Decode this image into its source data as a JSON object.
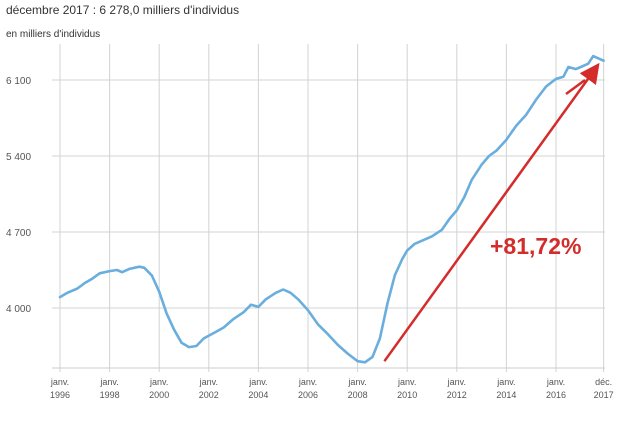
{
  "header": {
    "title": "décembre 2017 : 6 278,0 milliers d'individus",
    "unit": "en milliers d'individus"
  },
  "annotation": {
    "text": "+81,72%",
    "color": "#d42b2b"
  },
  "colors": {
    "line": "#6aaede",
    "grid": "#d3d3d3",
    "arrow": "#d42b2b"
  },
  "chart_data": {
    "type": "line",
    "title": "décembre 2017 : 6 278,0 milliers d'individus",
    "ylabel": "en milliers d'individus",
    "ylim": [
      3400,
      6450
    ],
    "xlim": [
      1996,
      2018
    ],
    "y_ticks": [
      {
        "value": 4000,
        "label": "4 000"
      },
      {
        "value": 4700,
        "label": "4 700"
      },
      {
        "value": 5400,
        "label": "5 400"
      },
      {
        "value": 6100,
        "label": "6 100"
      }
    ],
    "x_ticks": [
      {
        "value": 1996,
        "line1": "janv.",
        "line2": "1996"
      },
      {
        "value": 1998,
        "line1": "janv.",
        "line2": "1998"
      },
      {
        "value": 2000,
        "line1": "janv.",
        "line2": "2000"
      },
      {
        "value": 2002,
        "line1": "janv.",
        "line2": "2002"
      },
      {
        "value": 2004,
        "line1": "janv.",
        "line2": "2004"
      },
      {
        "value": 2006,
        "line1": "janv.",
        "line2": "2006"
      },
      {
        "value": 2008,
        "line1": "janv.",
        "line2": "2008"
      },
      {
        "value": 2010,
        "line1": "janv.",
        "line2": "2010"
      },
      {
        "value": 2012,
        "line1": "janv.",
        "line2": "2012"
      },
      {
        "value": 2014,
        "line1": "janv.",
        "line2": "2014"
      },
      {
        "value": 2016,
        "line1": "janv.",
        "line2": "2016"
      },
      {
        "value": 2017.92,
        "line1": "déc.",
        "line2": "2017"
      }
    ],
    "grid": true,
    "series": [
      {
        "values": [
          [
            1996.0,
            4100
          ],
          [
            1996.3,
            4140
          ],
          [
            1996.7,
            4180
          ],
          [
            1997.0,
            4230
          ],
          [
            1997.3,
            4270
          ],
          [
            1997.6,
            4320
          ],
          [
            1998.0,
            4340
          ],
          [
            1998.3,
            4350
          ],
          [
            1998.5,
            4330
          ],
          [
            1998.8,
            4360
          ],
          [
            1999.2,
            4380
          ],
          [
            1999.4,
            4370
          ],
          [
            1999.7,
            4300
          ],
          [
            2000.0,
            4150
          ],
          [
            2000.3,
            3950
          ],
          [
            2000.6,
            3800
          ],
          [
            2000.9,
            3680
          ],
          [
            2001.2,
            3640
          ],
          [
            2001.5,
            3650
          ],
          [
            2001.8,
            3720
          ],
          [
            2002.2,
            3770
          ],
          [
            2002.6,
            3820
          ],
          [
            2003.0,
            3900
          ],
          [
            2003.4,
            3960
          ],
          [
            2003.7,
            4030
          ],
          [
            2004.0,
            4010
          ],
          [
            2004.3,
            4080
          ],
          [
            2004.7,
            4140
          ],
          [
            2005.0,
            4170
          ],
          [
            2005.3,
            4140
          ],
          [
            2005.6,
            4080
          ],
          [
            2006.0,
            3980
          ],
          [
            2006.4,
            3850
          ],
          [
            2006.8,
            3760
          ],
          [
            2007.2,
            3660
          ],
          [
            2007.6,
            3580
          ],
          [
            2008.0,
            3510
          ],
          [
            2008.3,
            3500
          ],
          [
            2008.6,
            3550
          ],
          [
            2008.9,
            3720
          ],
          [
            2009.2,
            4040
          ],
          [
            2009.5,
            4300
          ],
          [
            2009.8,
            4450
          ],
          [
            2010.0,
            4530
          ],
          [
            2010.3,
            4590
          ],
          [
            2010.7,
            4630
          ],
          [
            2011.0,
            4660
          ],
          [
            2011.4,
            4720
          ],
          [
            2011.7,
            4820
          ],
          [
            2012.0,
            4900
          ],
          [
            2012.3,
            5020
          ],
          [
            2012.6,
            5180
          ],
          [
            2013.0,
            5320
          ],
          [
            2013.3,
            5400
          ],
          [
            2013.6,
            5450
          ],
          [
            2014.0,
            5550
          ],
          [
            2014.4,
            5680
          ],
          [
            2014.8,
            5780
          ],
          [
            2015.2,
            5920
          ],
          [
            2015.6,
            6040
          ],
          [
            2016.0,
            6110
          ],
          [
            2016.3,
            6130
          ],
          [
            2016.5,
            6220
          ],
          [
            2016.8,
            6200
          ],
          [
            2017.0,
            6220
          ],
          [
            2017.3,
            6250
          ],
          [
            2017.5,
            6320
          ],
          [
            2017.7,
            6300
          ],
          [
            2017.92,
            6278
          ]
        ]
      }
    ],
    "annotations": [
      {
        "type": "arrow",
        "from": [
          2009.0,
          3510
        ],
        "to": [
          2018.0,
          6220
        ]
      },
      {
        "type": "text",
        "text": "+81,72%"
      }
    ]
  }
}
